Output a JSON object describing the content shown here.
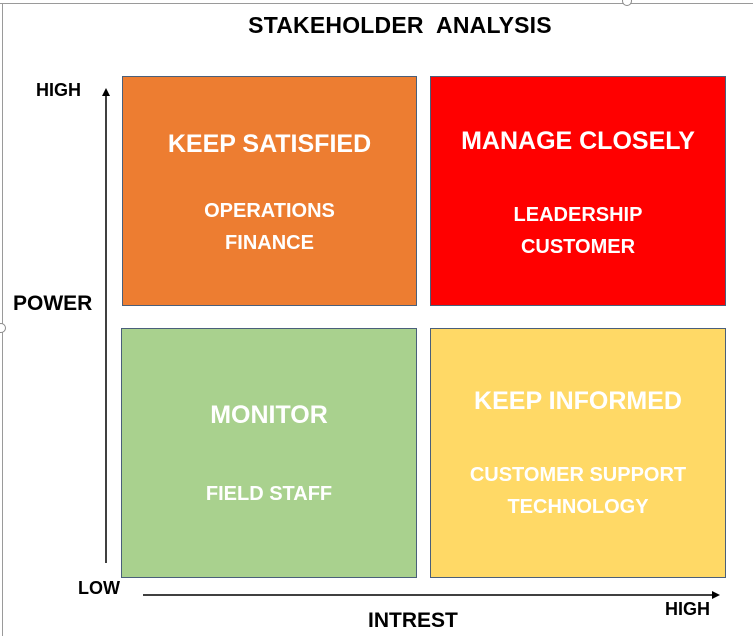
{
  "title": "STAKEHOLDER  ANALYSIS",
  "y_axis": {
    "label": "POWER",
    "high": "HIGH",
    "low": "LOW"
  },
  "x_axis": {
    "label": "INTREST",
    "high": "HIGH"
  },
  "quadrants": {
    "top_left": {
      "title": "KEEP SATISFIED",
      "items": [
        "OPERATIONS",
        "FINANCE"
      ],
      "color": "#ED7D31"
    },
    "top_right": {
      "title": "MANAGE CLOSELY",
      "items": [
        "LEADERSHIP",
        "CUSTOMER"
      ],
      "color": "#FF0000"
    },
    "bottom_left": {
      "title": "MONITOR",
      "items": [
        "FIELD STAFF"
      ],
      "color": "#A9D18E"
    },
    "bottom_right": {
      "title": "KEEP INFORMED",
      "items": [
        "CUSTOMER SUPPORT",
        "TECHNOLOGY"
      ],
      "color": "#FFD966"
    }
  }
}
